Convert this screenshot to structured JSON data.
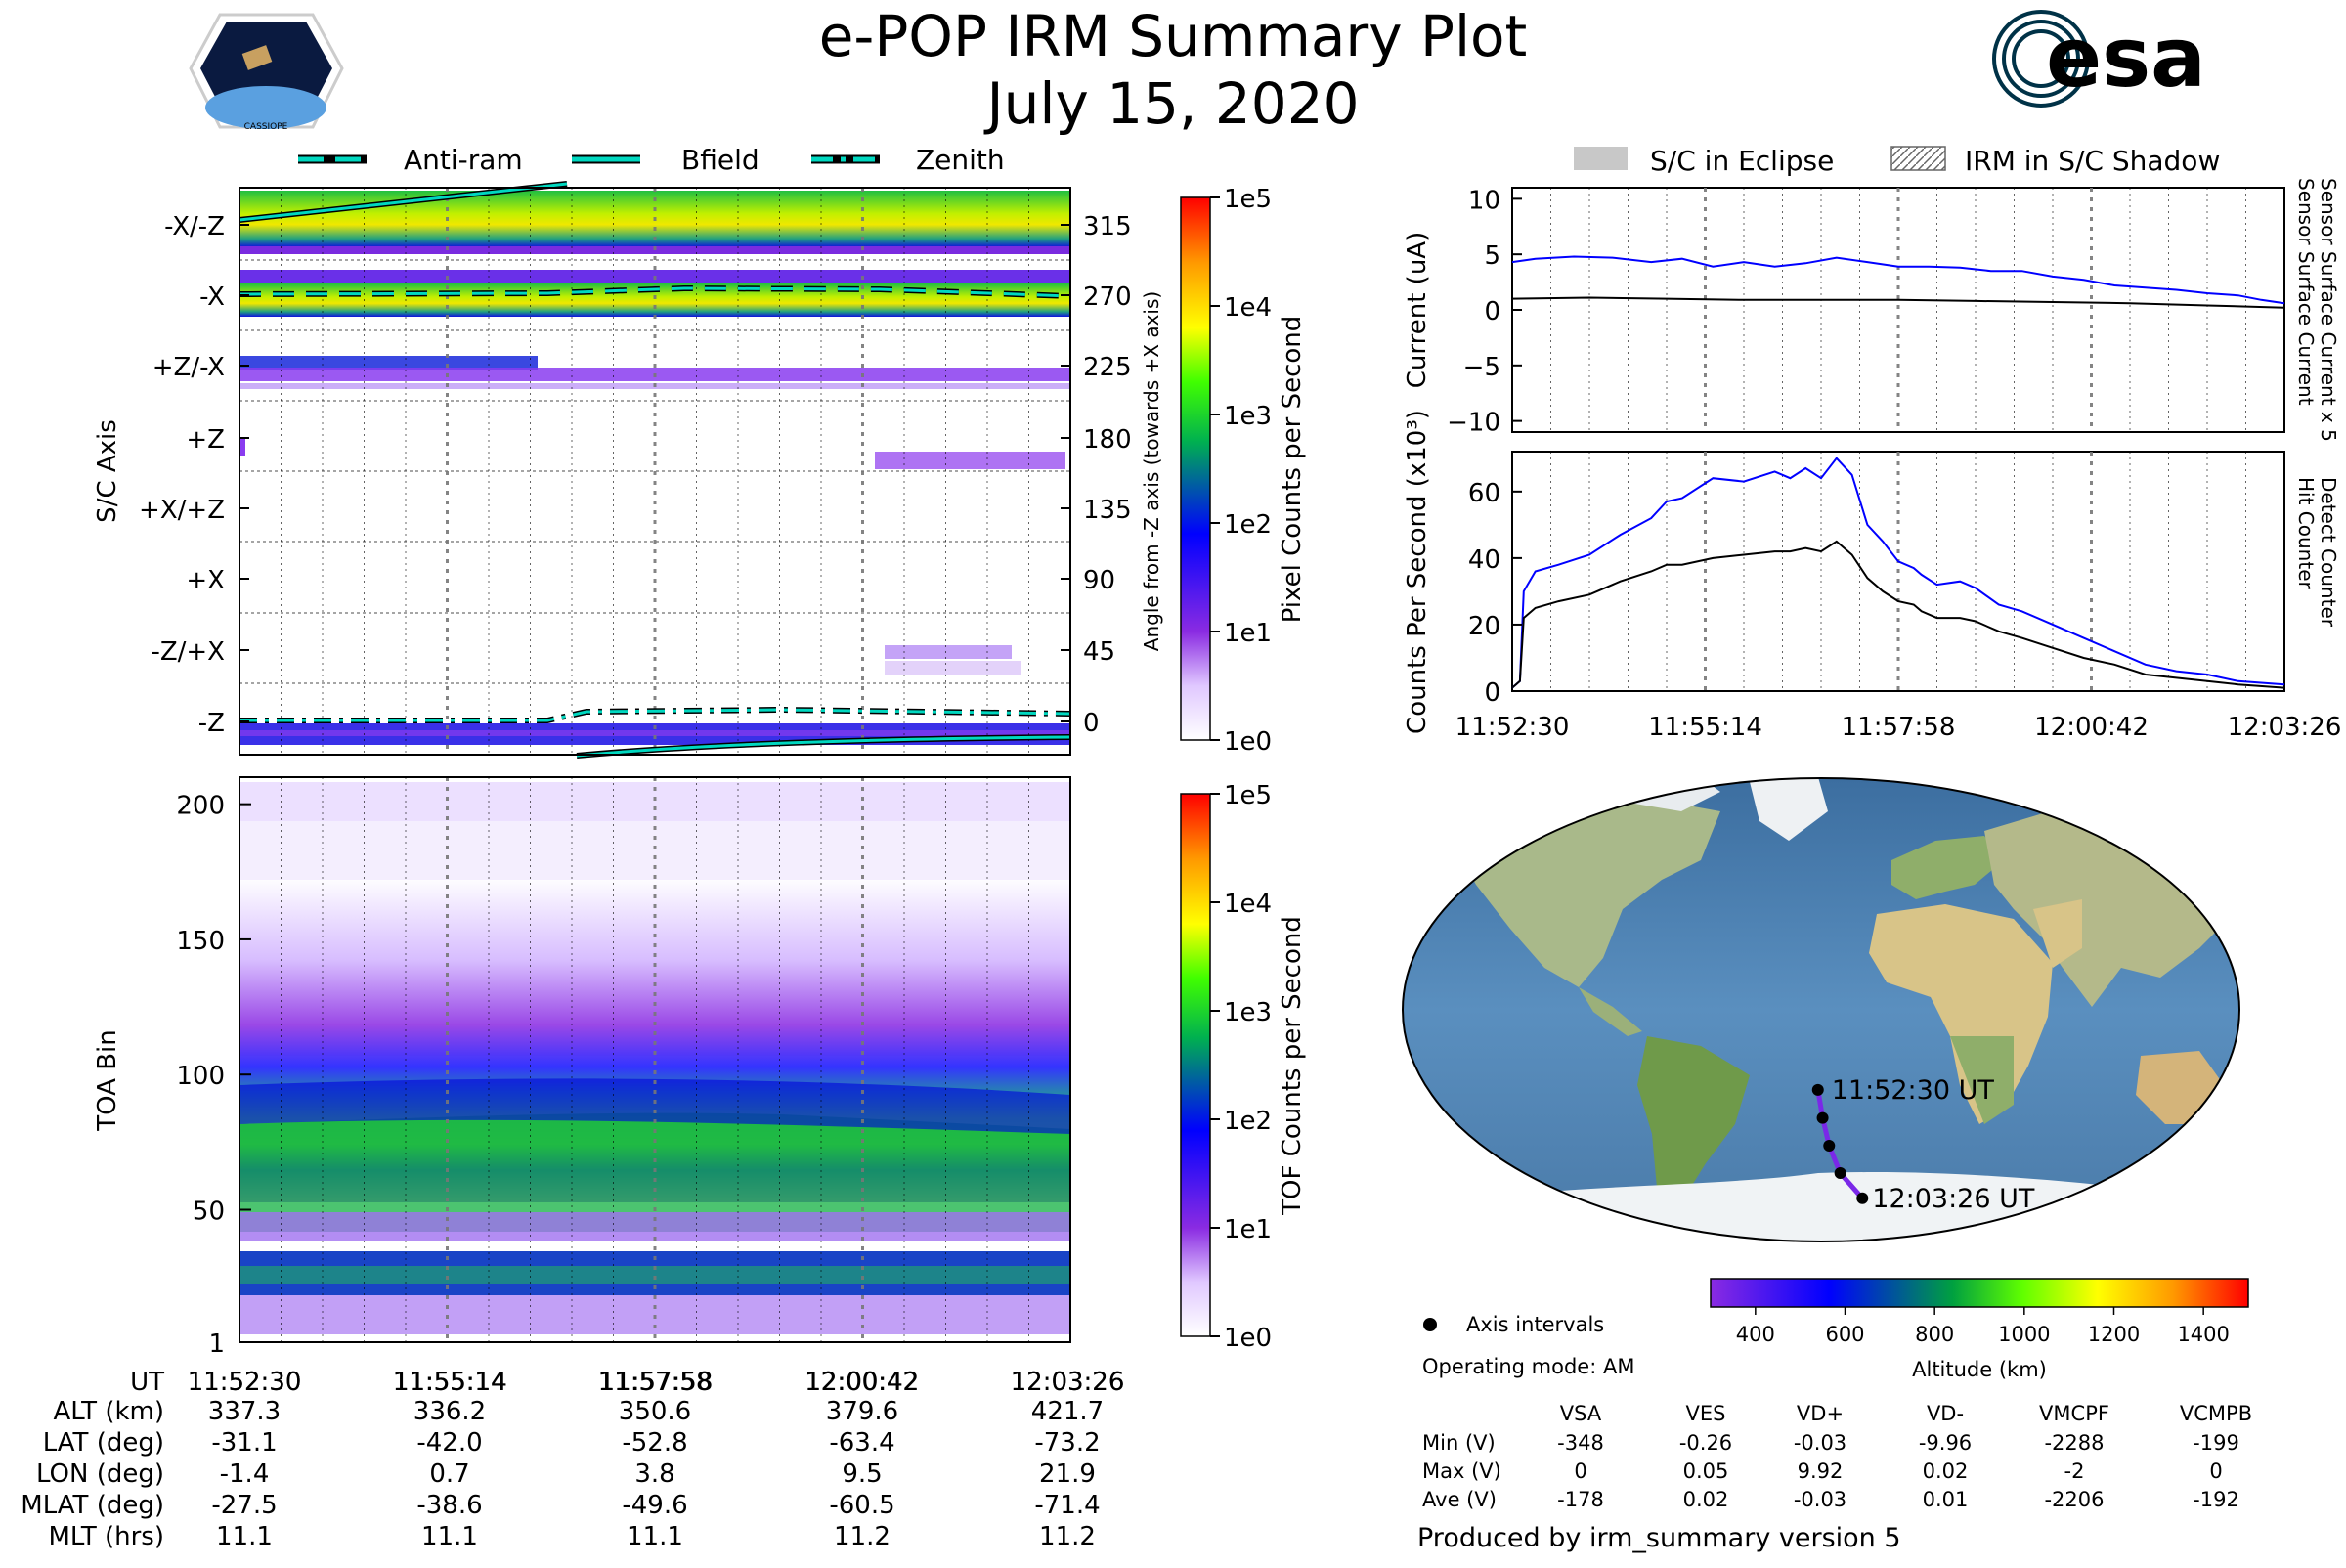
{
  "header": {
    "title": "e-POP IRM Summary Plot",
    "date": "July 15, 2020",
    "mission_badge_text": "CASSIOPE",
    "agency_logo_text": "esa",
    "agency_color": "#003247"
  },
  "legend_top": [
    {
      "label": "Anti-ram",
      "style": "dashed"
    },
    {
      "label": "Bfield",
      "style": "solid"
    },
    {
      "label": "Zenith",
      "style": "dashdot"
    }
  ],
  "legend_right": [
    {
      "label": "S/C in Eclipse",
      "style": "filled-grey"
    },
    {
      "label": "IRM in S/C Shadow",
      "style": "hatched"
    }
  ],
  "colors": {
    "current_blue": "#0000ff",
    "line_cyan": "#00d8c0",
    "orbit_purple": "#7a28e8",
    "eclipse_grey": "#c8c8c8"
  },
  "chart_data": [
    {
      "id": "sc_axis",
      "type": "heatmap",
      "ylabel": "S/C Axis",
      "ylabel_right": "Angle from -Z axis (towards +X axis)",
      "y_ticks_left": [
        "-X/-Z",
        "-X",
        "+Z/-X",
        "+Z",
        "+X/+Z",
        "+X",
        "-Z/+X",
        "-Z"
      ],
      "y_ticks_right": [
        "315",
        "270",
        "225",
        "180",
        "135",
        "90",
        "45",
        "0"
      ],
      "ylim": [
        -10,
        340
      ],
      "colorbar": {
        "label": "Pixel Counts per Second",
        "scale": "log",
        "ticks": [
          "1e5",
          "1e4",
          "1e3",
          "1e2",
          "1e1",
          "1e0"
        ]
      }
    },
    {
      "id": "toa",
      "type": "heatmap",
      "ylabel": "TOA Bin",
      "y_ticks": [
        "200",
        "150",
        "100",
        "50",
        "1"
      ],
      "y_tick_values": [
        200,
        150,
        100,
        50,
        1
      ],
      "ylim": [
        1,
        210
      ],
      "colorbar": {
        "label": "TOF Counts per Second",
        "scale": "log",
        "ticks": [
          "1e5",
          "1e4",
          "1e3",
          "1e2",
          "1e1",
          "1e0"
        ]
      },
      "x_ticks": [
        "11:52:30",
        "11:55:14",
        "11:57:58",
        "12:00:42",
        "12:03:26"
      ]
    },
    {
      "id": "current",
      "type": "line",
      "ylabel": "Current (uA)",
      "ylim": [
        -11,
        11
      ],
      "y_ticks": [
        10,
        5,
        0,
        -5,
        -10
      ],
      "y_tick_labels": [
        "10",
        "5",
        "0",
        "−5",
        "−10"
      ],
      "right_label_blue": "Sensor Surface Current x 5",
      "right_label_black": "Sensor Surface Current",
      "series": [
        {
          "name": "Sensor Surface Current x 5",
          "color": "#0000ff",
          "x": [
            0,
            0.03,
            0.08,
            0.13,
            0.18,
            0.22,
            0.26,
            0.3,
            0.34,
            0.38,
            0.42,
            0.46,
            0.5,
            0.54,
            0.58,
            0.62,
            0.66,
            0.7,
            0.74,
            0.78,
            0.82,
            0.86,
            0.9,
            0.94,
            0.97,
            1.0
          ],
          "y": [
            4.3,
            4.6,
            4.8,
            4.7,
            4.3,
            4.6,
            3.9,
            4.3,
            3.9,
            4.2,
            4.7,
            4.3,
            3.9,
            3.9,
            3.8,
            3.5,
            3.5,
            3.0,
            2.7,
            2.2,
            2.0,
            1.8,
            1.5,
            1.3,
            0.9,
            0.6
          ]
        },
        {
          "name": "Sensor Surface Current",
          "color": "#000000",
          "x": [
            0,
            0.1,
            0.2,
            0.3,
            0.4,
            0.5,
            0.6,
            0.7,
            0.8,
            0.9,
            1.0
          ],
          "y": [
            1.0,
            1.1,
            1.0,
            0.9,
            0.9,
            0.9,
            0.8,
            0.7,
            0.6,
            0.4,
            0.2
          ]
        }
      ]
    },
    {
      "id": "counts",
      "type": "line",
      "ylabel": "Counts Per Second (x10³)",
      "ylim": [
        0,
        72
      ],
      "y_ticks": [
        0,
        20,
        40,
        60
      ],
      "y_tick_labels": [
        "0",
        "20",
        "40",
        "60"
      ],
      "right_label_blue": "Detect Counter",
      "right_label_black": "Hit Counter",
      "x_ticks": [
        "11:52:30",
        "11:55:14",
        "11:57:58",
        "12:00:42",
        "12:03:26"
      ],
      "series": [
        {
          "name": "Detect Counter",
          "color": "#0000ff",
          "x": [
            0,
            0.01,
            0.015,
            0.03,
            0.06,
            0.1,
            0.14,
            0.18,
            0.2,
            0.22,
            0.26,
            0.3,
            0.34,
            0.36,
            0.38,
            0.4,
            0.42,
            0.44,
            0.46,
            0.48,
            0.5,
            0.52,
            0.53,
            0.55,
            0.58,
            0.6,
            0.63,
            0.66,
            0.7,
            0.74,
            0.78,
            0.82,
            0.86,
            0.9,
            0.94,
            1.0
          ],
          "y": [
            1,
            3,
            30,
            36,
            38,
            41,
            47,
            52,
            57,
            58,
            64,
            63,
            66,
            64,
            67,
            64,
            70,
            65,
            50,
            45,
            39,
            37,
            35,
            32,
            33,
            31,
            26,
            24,
            20,
            16,
            12,
            8,
            6,
            5,
            3,
            2
          ]
        },
        {
          "name": "Hit Counter",
          "color": "#000000",
          "x": [
            0,
            0.01,
            0.015,
            0.03,
            0.06,
            0.1,
            0.14,
            0.18,
            0.2,
            0.22,
            0.26,
            0.3,
            0.34,
            0.36,
            0.38,
            0.4,
            0.42,
            0.44,
            0.46,
            0.48,
            0.5,
            0.52,
            0.53,
            0.55,
            0.58,
            0.6,
            0.63,
            0.66,
            0.7,
            0.74,
            0.78,
            0.82,
            0.86,
            0.9,
            0.94,
            1.0
          ],
          "y": [
            1,
            3,
            22,
            25,
            27,
            29,
            33,
            36,
            38,
            38,
            40,
            41,
            42,
            42,
            43,
            42,
            45,
            41,
            34,
            30,
            27,
            26,
            24,
            22,
            22,
            21,
            18,
            16,
            13,
            10,
            8,
            5,
            4,
            3,
            2,
            1
          ]
        }
      ]
    },
    {
      "id": "orbit_map",
      "type": "scatter",
      "start_label": "11:52:30 UT",
      "end_label": "12:03:26 UT",
      "lon": [
        -1.4,
        0.7,
        3.8,
        9.5,
        21.9
      ],
      "lat": [
        -31.1,
        -42.0,
        -52.8,
        -63.4,
        -73.2
      ],
      "colorbar": {
        "label": "Altitude (km)",
        "range": [
          300,
          1500
        ],
        "ticks": [
          "400",
          "600",
          "800",
          "1000",
          "1200",
          "1400"
        ],
        "tick_values": [
          400,
          600,
          800,
          1000,
          1200,
          1400
        ]
      },
      "legend_label": "Axis intervals"
    }
  ],
  "ephemeris": {
    "row_labels": [
      "UT",
      "ALT (km)",
      "LAT (deg)",
      "LON (deg)",
      "MLAT (deg)",
      "MLT (hrs)"
    ],
    "columns": [
      [
        "11:52:30",
        "337.3",
        "-31.1",
        "-1.4",
        "-27.5",
        "11.1"
      ],
      [
        "11:55:14",
        "336.2",
        "-42.0",
        "0.7",
        "-38.6",
        "11.1"
      ],
      [
        "11:57:58",
        "350.6",
        "-52.8",
        "3.8",
        "-49.6",
        "11.1"
      ],
      [
        "12:00:42",
        "379.6",
        "-63.4",
        "9.5",
        "-60.5",
        "11.2"
      ],
      [
        "12:03:26",
        "421.7",
        "-73.2",
        "21.9",
        "-71.4",
        "11.2"
      ]
    ]
  },
  "voltages": {
    "operating_mode": "Operating mode: AM",
    "headers": [
      "VSA",
      "VES",
      "VD+",
      "VD-",
      "VMCPF",
      "VCMPB"
    ],
    "rows": [
      {
        "label": "Min (V)",
        "values": [
          "-348",
          "-0.26",
          "-0.03",
          "-9.96",
          "-2288",
          "-199"
        ]
      },
      {
        "label": "Max (V)",
        "values": [
          "0",
          "0.05",
          "9.92",
          "0.02",
          "-2",
          "0"
        ]
      },
      {
        "label": "Ave (V)",
        "values": [
          "-178",
          "0.02",
          "-0.03",
          "0.01",
          "-2206",
          "-192"
        ]
      }
    ]
  },
  "footer": "Produced by irm_summary version 5"
}
